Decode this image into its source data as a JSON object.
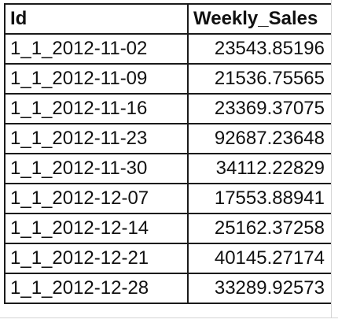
{
  "table": {
    "headers": [
      "Id",
      "Weekly_Sales"
    ],
    "rows": [
      [
        "1_1_2012-11-02",
        "23543.85196"
      ],
      [
        "1_1_2012-11-09",
        "21536.75565"
      ],
      [
        "1_1_2012-11-16",
        "23369.37075"
      ],
      [
        "1_1_2012-11-23",
        "92687.23648"
      ],
      [
        "1_1_2012-11-30",
        "34112.22829"
      ],
      [
        "1_1_2012-12-07",
        "17553.88941"
      ],
      [
        "1_1_2012-12-14",
        "25162.37258"
      ],
      [
        "1_1_2012-12-21",
        "40145.27174"
      ],
      [
        "1_1_2012-12-28",
        "33289.92573"
      ]
    ]
  }
}
